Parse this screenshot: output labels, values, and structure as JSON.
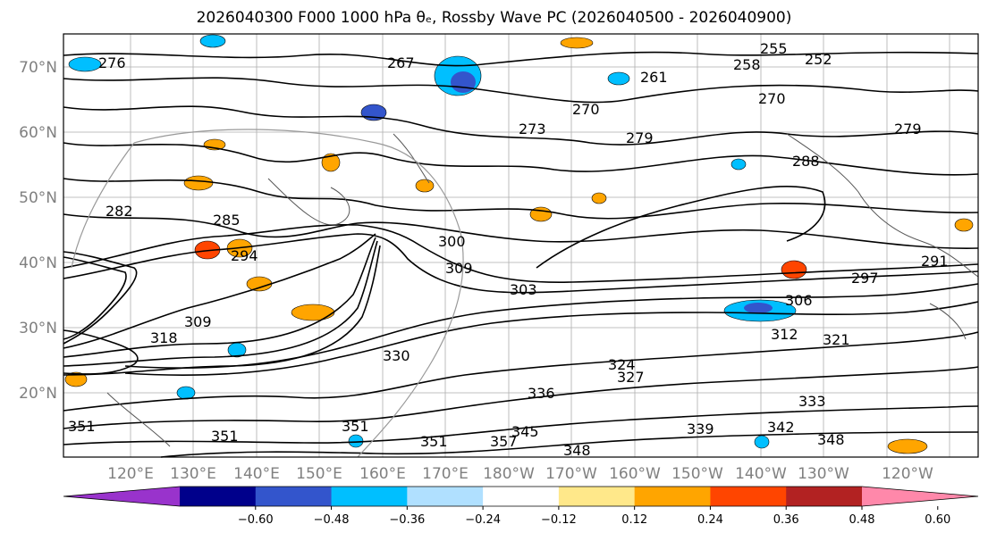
{
  "title": "2026040300 F000 1000 hPa θₑ, Rossby Wave PC (2026040500 - 2026040900)",
  "map": {
    "lat_labels": [
      "70°N",
      "60°N",
      "50°N",
      "40°N",
      "30°N",
      "20°N"
    ],
    "lon_labels": [
      "120°E",
      "130°E",
      "140°E",
      "150°E",
      "160°E",
      "170°E",
      "180°W",
      "170°W",
      "160°W",
      "150°W",
      "140°W",
      "130°W",
      "120°W"
    ],
    "contour_labels": [
      "276",
      "267",
      "255",
      "252",
      "261",
      "258",
      "270",
      "270",
      "273",
      "279",
      "288",
      "279",
      "282",
      "285",
      "294",
      "300",
      "309",
      "303",
      "306",
      "297",
      "291",
      "309",
      "318",
      "312",
      "321",
      "324",
      "327",
      "330",
      "336",
      "333",
      "339",
      "342",
      "345",
      "348",
      "351",
      "351",
      "351",
      "357",
      "348",
      "351"
    ]
  },
  "colorbar": {
    "ticks": [
      "−0.60",
      "−0.48",
      "−0.36",
      "−0.24",
      "−0.12",
      "0.12",
      "0.24",
      "0.36",
      "0.48",
      "0.60"
    ],
    "colors": [
      "#9933cc",
      "#00008b",
      "#3355cc",
      "#00bfff",
      "#b0e0ff",
      "#ffffff",
      "#ffe88a",
      "#ffa500",
      "#ff4500",
      "#b22222",
      "#ff88aa"
    ]
  }
}
